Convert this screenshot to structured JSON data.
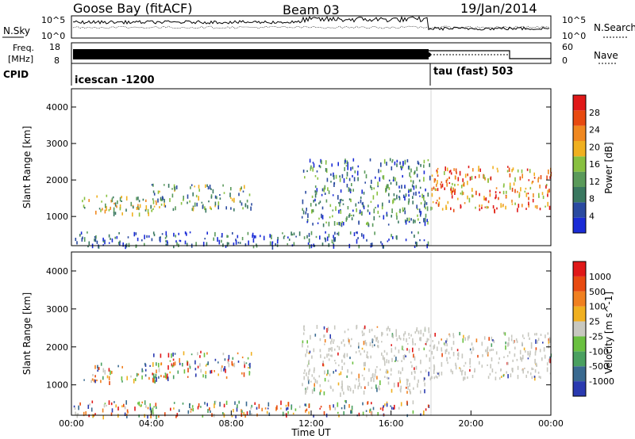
{
  "header": {
    "station": "Goose Bay (fitACF)",
    "beam": "Beam 03",
    "date": "19/Jan/2014"
  },
  "noise_panel": {
    "left_label": "N.Sky",
    "right_label": "N.Search",
    "left_ticks": [
      "10^5",
      "10^0"
    ],
    "right_ticks": [
      "10^5",
      "10^0"
    ]
  },
  "freq_panel": {
    "left_label_line1": "Freq.",
    "left_label_line2": "[MHz]",
    "right_label": "Nave",
    "left_ticks": [
      "18",
      "8"
    ],
    "right_ticks": [
      "60",
      "0"
    ]
  },
  "cpid_panel": {
    "label": "CPID",
    "program_1": "icescan -1200",
    "program_2": "tau (fast) 503"
  },
  "colors": {
    "frame": "#000000",
    "ground_scatter": "#c8c8c0",
    "power_scale": [
      "#1a2bd6",
      "#2a4aa0",
      "#3a7860",
      "#5a9a5a",
      "#88c040",
      "#f0b020",
      "#f08820",
      "#e84a10",
      "#e01818"
    ],
    "velocity_scale": [
      "#2a3ab0",
      "#3a6a90",
      "#4aa060",
      "#6ac040",
      "#c8c8c0",
      "#f0b020",
      "#f08020",
      "#e84a10",
      "#e01818"
    ]
  },
  "chart_data": [
    {
      "type": "heatmap",
      "title": "",
      "xlabel": "",
      "ylabel": "Slant Range [km]",
      "xlim": [
        "00:00",
        "00:00"
      ],
      "ylim": [
        200,
        4500
      ],
      "yticks": [
        1000,
        2000,
        3000,
        4000
      ],
      "colorbar": {
        "label": "Power [dB]",
        "ticks": [
          4,
          8,
          12,
          16,
          20,
          24,
          28
        ],
        "range": [
          0,
          30
        ]
      },
      "observed_regions": [
        {
          "start_ut": "00:30",
          "end_ut": "04:30",
          "range_low_km": 1100,
          "range_high_km": 1600,
          "dominant_db": 14
        },
        {
          "start_ut": "04:00",
          "end_ut": "09:00",
          "range_low_km": 1200,
          "range_high_km": 1900,
          "dominant_db": 12
        },
        {
          "start_ut": "11:30",
          "end_ut": "18:00",
          "range_low_km": 800,
          "range_high_km": 2600,
          "dominant_db": 10
        },
        {
          "start_ut": "18:00",
          "end_ut": "23:59",
          "range_low_km": 1200,
          "range_high_km": 2400,
          "dominant_db": 20
        },
        {
          "start_ut": "00:00",
          "end_ut": "18:00",
          "range_low_km": 200,
          "range_high_km": 600,
          "dominant_db": 6
        }
      ]
    },
    {
      "type": "heatmap",
      "title": "",
      "xlabel": "Time UT",
      "ylabel": "Slant Range [km]",
      "xlim": [
        "00:00",
        "00:00"
      ],
      "ylim": [
        200,
        4500
      ],
      "yticks": [
        1000,
        2000,
        3000,
        4000
      ],
      "xticks": [
        "00:00",
        "04:00",
        "08:00",
        "12:00",
        "16:00",
        "20:00",
        "00:00"
      ],
      "colorbar": {
        "label": "Velocity [m s^-1]",
        "ticks": [
          "1000",
          "500",
          "100",
          "25",
          "-25",
          "-100",
          "-500",
          "-1000"
        ],
        "range": [
          -1000,
          1000
        ]
      },
      "observed_regions": [
        {
          "start_ut": "00:30",
          "end_ut": "04:30",
          "range_low_km": 1100,
          "range_high_km": 1600,
          "dominant_ms": 100
        },
        {
          "start_ut": "04:00",
          "end_ut": "09:00",
          "range_low_km": 1200,
          "range_high_km": 1900,
          "dominant_ms": -100
        },
        {
          "start_ut": "11:30",
          "end_ut": "18:00",
          "range_low_km": 800,
          "range_high_km": 2600,
          "dominant_ms": 0
        },
        {
          "start_ut": "18:00",
          "end_ut": "23:59",
          "range_low_km": 1200,
          "range_high_km": 2400,
          "dominant_ms": 0
        },
        {
          "start_ut": "00:00",
          "end_ut": "18:00",
          "range_low_km": 200,
          "range_high_km": 600,
          "dominant_ms": -100
        }
      ]
    }
  ]
}
